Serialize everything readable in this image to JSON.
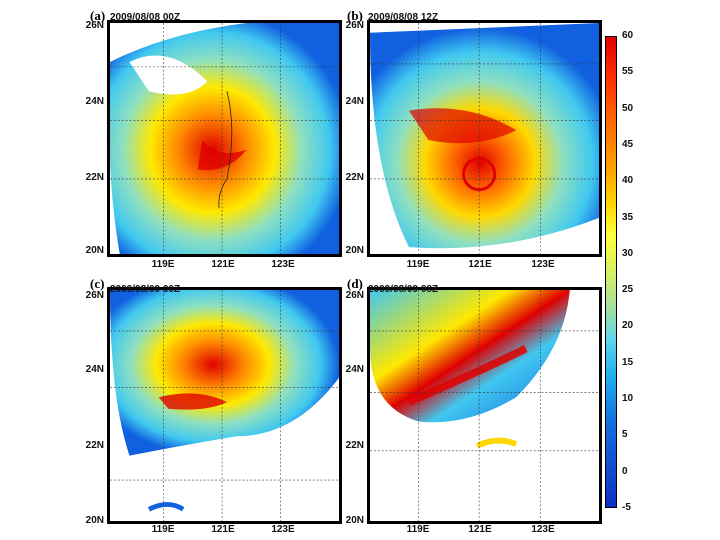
{
  "panels": [
    {
      "letter": "(a)",
      "stamp": "2009/08/08 00Z"
    },
    {
      "letter": "(b)",
      "stamp": "2009/08/08 12Z"
    },
    {
      "letter": "(c)",
      "stamp": "2009/08/09 00Z"
    },
    {
      "letter": "(d)",
      "stamp": "2009/08/09 08Z"
    }
  ],
  "axes": {
    "lat_ticks": [
      "26N",
      "24N",
      "22N",
      "20N"
    ],
    "lon_ticks": [
      "119E",
      "121E",
      "123E"
    ]
  },
  "colorbar": {
    "ticks": [
      "60",
      "55",
      "50",
      "45",
      "40",
      "35",
      "30",
      "25",
      "20",
      "15",
      "10",
      "5",
      "0",
      "-5"
    ],
    "colors": {
      "high": "#e00000",
      "orange": "#ff8a00",
      "yellow": "#ffe800",
      "green": "#a0e0a0",
      "cyan": "#40c8f0",
      "blue": "#1040d0"
    }
  }
}
